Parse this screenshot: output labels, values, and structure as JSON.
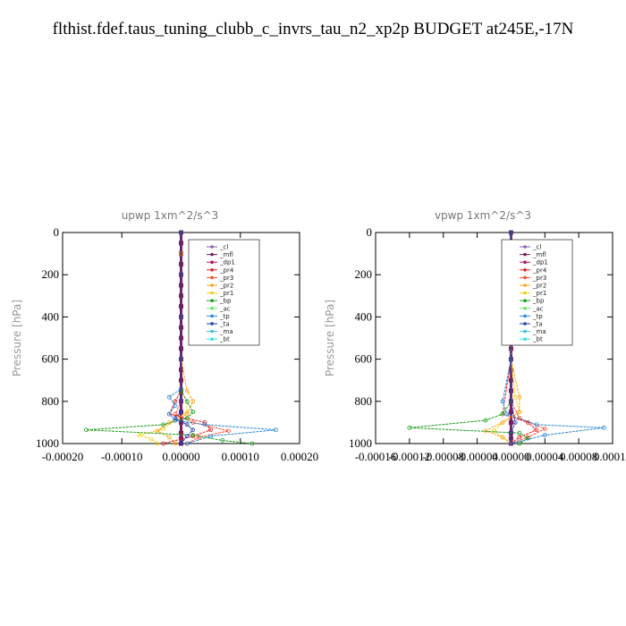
{
  "page": {
    "title": "flthist.fdef.taus_tuning_clubb_c_invrs_tau_n2_xp2p  BUDGET at245E,-17N"
  },
  "legend_entries": [
    {
      "name": "_cl",
      "color": "#8b5fb6"
    },
    {
      "name": "_mfl",
      "color": "#7a1f5c"
    },
    {
      "name": "_dp1",
      "color": "#b5125e"
    },
    {
      "name": "_pr4",
      "color": "#e02020"
    },
    {
      "name": "_pr3",
      "color": "#ff4d2e"
    },
    {
      "name": "_pr2",
      "color": "#ffa31a"
    },
    {
      "name": "_pr1",
      "color": "#f2d21a"
    },
    {
      "name": "_bp",
      "color": "#1f9e1f"
    },
    {
      "name": "_ac",
      "color": "#6be06b"
    },
    {
      "name": "_tp",
      "color": "#2a8ad6"
    },
    {
      "name": "_ta",
      "color": "#1f3fb0"
    },
    {
      "name": "_ma",
      "color": "#3cc4e0"
    },
    {
      "name": "_bt",
      "color": "#33e0e0"
    }
  ],
  "chart_data": [
    {
      "type": "line",
      "title": "upwp   1xm^2/s^3",
      "ylabel": "Pressure [hPa]",
      "xlim": [
        -0.0002,
        0.0002
      ],
      "ylim": [
        1000,
        0
      ],
      "xticks": [
        -0.0002,
        -0.0001,
        0.0,
        0.0001,
        0.0002
      ],
      "xtick_labels": [
        "-0.00020",
        "-0.00010",
        "0.00000",
        "0.00010",
        "0.00020"
      ],
      "yticks": [
        0,
        200,
        400,
        600,
        800,
        1000
      ],
      "ytick_labels": [
        "0",
        "200",
        "400",
        "600",
        "800",
        "1000"
      ],
      "legend_position": "top-right",
      "series": [
        {
          "name": "_mfl",
          "x": [
            0,
            0,
            0,
            0,
            0,
            0,
            0,
            0,
            0,
            0,
            0,
            0,
            0,
            0,
            0,
            0,
            0,
            0,
            0,
            0,
            0,
            0
          ],
          "y": [
            0,
            50,
            100,
            150,
            200,
            250,
            300,
            350,
            400,
            450,
            500,
            550,
            600,
            650,
            700,
            750,
            800,
            850,
            900,
            950,
            975,
            1000
          ]
        },
        {
          "name": "_pr1",
          "x": [
            0,
            0,
            0,
            0,
            0,
            0,
            1e-05,
            1e-05,
            -1e-05,
            -3e-05,
            -7e-05,
            -5e-05,
            -4e-05
          ],
          "y": [
            0,
            100,
            200,
            400,
            600,
            750,
            800,
            850,
            890,
            930,
            960,
            980,
            1000
          ]
        },
        {
          "name": "_pr2",
          "x": [
            0,
            0,
            0,
            0,
            0,
            1e-05,
            2e-05,
            1e-05,
            -2e-05,
            -4e-05,
            -2e-05,
            -1e-05
          ],
          "y": [
            0,
            100,
            200,
            400,
            600,
            750,
            800,
            860,
            900,
            940,
            970,
            1000
          ]
        },
        {
          "name": "_pr3",
          "x": [
            0,
            0,
            0,
            0,
            0,
            0,
            -1e-05,
            2e-05,
            8e-05,
            3e-05,
            1e-05
          ],
          "y": [
            0,
            200,
            400,
            600,
            750,
            800,
            860,
            900,
            940,
            970,
            1000
          ]
        },
        {
          "name": "_pr4",
          "x": [
            0,
            0,
            0,
            0,
            0,
            -1e-05,
            -2e-05,
            4e-05,
            5e-05,
            2e-05,
            -3e-05
          ],
          "y": [
            0,
            200,
            400,
            600,
            750,
            800,
            860,
            900,
            935,
            965,
            1000
          ]
        },
        {
          "name": "_bp",
          "x": [
            0,
            0,
            0,
            0,
            0,
            1e-05,
            2e-05,
            1e-05,
            -3e-05,
            -0.00016,
            2e-05,
            7e-05,
            0.00012
          ],
          "y": [
            0,
            200,
            400,
            600,
            750,
            800,
            850,
            880,
            910,
            935,
            960,
            985,
            1000
          ]
        },
        {
          "name": "_tp",
          "x": [
            0,
            0,
            0,
            0,
            0,
            -2e-05,
            -1e-05,
            -2e-05,
            -1e-05,
            4e-05,
            0.00016,
            5e-05,
            1e-05
          ],
          "y": [
            0,
            200,
            400,
            600,
            740,
            780,
            820,
            860,
            890,
            910,
            935,
            965,
            1000
          ]
        },
        {
          "name": "_ta",
          "x": [
            0,
            0,
            0,
            0,
            0,
            0,
            -1e-05,
            1e-05,
            2e-05,
            1e-05,
            0
          ],
          "y": [
            0,
            200,
            400,
            600,
            800,
            850,
            880,
            910,
            935,
            965,
            1000
          ]
        }
      ]
    },
    {
      "type": "line",
      "title": "vpwp   1xm^2/s^3",
      "ylabel": "Pressure [hPa]",
      "xlim": [
        -0.00016,
        0.00012
      ],
      "ylim": [
        1000,
        0
      ],
      "xticks": [
        -0.00016,
        -0.00012,
        -8e-05,
        -4e-05,
        0.0,
        4e-05,
        8e-05,
        0.00012
      ],
      "xtick_labels": [
        "-0.00016",
        "-0.00012",
        "-0.00008",
        "-0.00004",
        "0.00000",
        "0.00004",
        "0.00008",
        "0.00012"
      ],
      "yticks": [
        0,
        200,
        400,
        600,
        800,
        1000
      ],
      "ytick_labels": [
        "0",
        "200",
        "400",
        "600",
        "800",
        "1000"
      ],
      "legend_position": "top-right",
      "series": [
        {
          "name": "_mfl",
          "x": [
            0,
            0,
            0,
            0,
            0,
            0,
            0,
            0,
            0,
            0,
            0,
            0,
            0,
            0,
            0,
            0,
            0,
            0,
            0,
            0,
            0,
            0
          ],
          "y": [
            0,
            50,
            100,
            150,
            200,
            250,
            300,
            350,
            400,
            450,
            500,
            550,
            600,
            650,
            700,
            750,
            800,
            850,
            900,
            950,
            975,
            1000
          ]
        },
        {
          "name": "_pr1",
          "x": [
            0,
            0,
            5e-06,
            5e-06,
            0,
            0,
            0,
            5e-06,
            1e-05,
            -1e-05,
            -2e-05,
            -1e-05,
            0
          ],
          "y": [
            0,
            150,
            180,
            240,
            280,
            400,
            600,
            780,
            850,
            900,
            940,
            970,
            1000
          ]
        },
        {
          "name": "_pr2",
          "x": [
            0,
            -5e-06,
            0,
            0,
            0,
            1e-05,
            1e-05,
            -1e-05,
            -3e-05,
            -1e-05,
            0
          ],
          "y": [
            0,
            200,
            250,
            400,
            600,
            780,
            850,
            900,
            940,
            970,
            1000
          ]
        },
        {
          "name": "_pr3",
          "x": [
            0,
            0,
            0,
            0,
            0,
            1e-05,
            4e-05,
            2e-05,
            0
          ],
          "y": [
            0,
            200,
            400,
            600,
            800,
            880,
            930,
            970,
            1000
          ]
        },
        {
          "name": "_pr4",
          "x": [
            0,
            0,
            0,
            0,
            -1e-05,
            2e-05,
            3e-05,
            1e-05,
            0
          ],
          "y": [
            0,
            200,
            400,
            600,
            860,
            900,
            935,
            970,
            1000
          ]
        },
        {
          "name": "_bp",
          "x": [
            0,
            0,
            0,
            0,
            0,
            -1e-05,
            -3e-05,
            -0.00012,
            1e-05,
            2e-05,
            1e-05
          ],
          "y": [
            0,
            200,
            400,
            600,
            800,
            860,
            890,
            925,
            950,
            975,
            1000
          ]
        },
        {
          "name": "_tp",
          "x": [
            0,
            -5e-06,
            5e-06,
            0,
            0,
            -1e-05,
            -5e-06,
            3e-05,
            0.00011,
            4e-05,
            0
          ],
          "y": [
            0,
            170,
            230,
            400,
            600,
            800,
            860,
            910,
            925,
            960,
            1000
          ]
        },
        {
          "name": "_ta",
          "x": [
            0,
            0,
            0,
            0,
            0,
            5e-06,
            0,
            0
          ],
          "y": [
            0,
            200,
            400,
            600,
            800,
            900,
            950,
            1000
          ]
        }
      ]
    }
  ]
}
